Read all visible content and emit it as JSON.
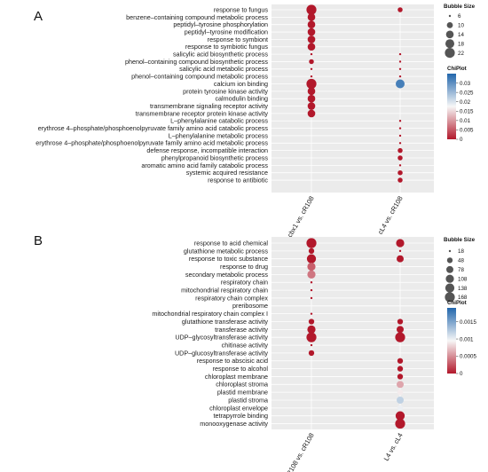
{
  "chart_data": [
    {
      "type": "scatter",
      "panel_label": "A",
      "categories_y": [
        "response to fungus",
        "benzene–containing compound metabolic process",
        "peptidyl–tyrosine phosphorylation",
        "peptidyl–tyrosine modification",
        "response to symbiont",
        "response to symbiotic fungus",
        "salicylic acid biosynthetic process",
        "phenol–containing compound biosynthetic process",
        "salicylic acid metabolic process",
        "phenol–containing compound metabolic process",
        "calcium ion binding",
        "protein tyrosine kinase activity",
        "calmodulin binding",
        "transmembrane signaling receptor activity",
        "transmembrane receptor protein kinase activity",
        "L–phenylalanine catabolic process",
        "erythrose 4–phosphate/phosphoenolpyruvate family amino acid catabolic process",
        "L–phenylalanine metabolic process",
        "erythrose 4–phosphate/phosphoenolpyruvate family amino acid metabolic process",
        "defense response, incompatible interaction",
        "phenylpropanoid biosynthetic process",
        "aromatic amino acid family catabolic process",
        "systemic acquired resistance",
        "response to antibiotic"
      ],
      "categories_x": [
        "cbx1 vs. cR108",
        "cL4 vs. cR108"
      ],
      "series": [
        {
          "x": "cbx1 vs. cR108",
          "size": [
            22,
            14,
            14,
            14,
            14,
            14,
            6,
            8,
            6,
            6,
            22,
            14,
            14,
            14,
            14,
            null,
            null,
            null,
            null,
            null,
            null,
            null,
            null,
            null
          ],
          "pvalue": [
            0,
            0,
            0,
            0,
            0,
            0,
            0,
            0,
            0,
            0,
            0,
            0,
            0,
            0,
            0,
            null,
            null,
            null,
            null,
            null,
            null,
            null,
            null,
            null
          ]
        },
        {
          "x": "cL4 vs. cR108",
          "size": [
            8,
            null,
            null,
            null,
            null,
            null,
            6,
            6,
            6,
            6,
            18,
            null,
            null,
            null,
            null,
            6,
            6,
            6,
            6,
            8,
            8,
            6,
            8,
            8
          ],
          "pvalue": [
            0,
            null,
            null,
            null,
            null,
            null,
            0,
            0,
            0,
            0,
            0.032,
            null,
            null,
            null,
            null,
            0,
            0,
            0,
            0,
            0,
            0,
            0,
            0,
            0
          ]
        }
      ],
      "legend_size": {
        "title": "Bubble Size",
        "values": [
          6,
          10,
          14,
          18,
          22
        ]
      },
      "legend_color": {
        "title": "ChiPlot",
        "ticks": [
          0.03,
          0.025,
          0.02,
          0.015,
          0.01,
          0.005,
          0
        ],
        "low_color": "#b2182b",
        "mid_color": "#f7f7f7",
        "high_color": "#2166ac",
        "max": 0.035
      }
    },
    {
      "type": "scatter",
      "panel_label": "B",
      "categories_y": [
        "response to acid chemical",
        "glutathione metabolic process",
        "response to toxic substance",
        "response to drug",
        "secondary metabolic process",
        "respiratory chain",
        "mitochondrial respiratory chain",
        "respiratory chain complex",
        "preribosome",
        "mitochondrial respiratory chain complex I",
        "glutathione transferase activity",
        "transferase activity",
        "UDP–glycosyltransferase activity",
        "chitinase activity",
        "UDP–glucosyltransferase activity",
        "response to abscisic acid",
        "response to alcohol",
        "chloroplast membrane",
        "chloroplast stroma",
        "plastid membrane",
        "plastid stroma",
        "chloroplast envelope",
        "tetrapyrrole binding",
        "monooxygenase activity"
      ],
      "categories_x": [
        "R108 vs. cR108",
        "L4 vs. cL4"
      ],
      "series": [
        {
          "x": "R108 vs. cR108",
          "size": [
            168,
            48,
            138,
            108,
            108,
            18,
            18,
            18,
            null,
            18,
            48,
            108,
            168,
            18,
            48,
            null,
            null,
            null,
            null,
            null,
            null,
            null,
            null,
            null
          ],
          "pvalue": [
            0,
            0,
            0,
            0.0003,
            0.0004,
            0,
            0,
            0,
            null,
            0,
            0,
            0,
            0,
            0,
            0,
            null,
            null,
            null,
            null,
            null,
            null,
            null,
            null,
            null
          ]
        },
        {
          "x": "L4 vs. cL4",
          "size": [
            108,
            18,
            78,
            null,
            null,
            null,
            null,
            null,
            null,
            null,
            48,
            78,
            168,
            null,
            null,
            48,
            48,
            48,
            78,
            48,
            78,
            48,
            138,
            168
          ],
          "pvalue": [
            0,
            0,
            0,
            null,
            null,
            null,
            null,
            null,
            null,
            null,
            0,
            0,
            0,
            null,
            null,
            0,
            0,
            0,
            0.0006,
            0.0009,
            0.0012,
            0.001,
            0,
            0
          ]
        }
      ],
      "legend_size": {
        "title": "Bubble Size",
        "values": [
          18,
          48,
          78,
          108,
          138,
          168
        ]
      },
      "legend_color": {
        "title": "ChiPlot",
        "ticks": [
          0.0015,
          0.001,
          0.0005,
          0
        ],
        "low_color": "#b2182b",
        "mid_color": "#f7f7f7",
        "high_color": "#2166ac",
        "max": 0.0019
      }
    }
  ]
}
